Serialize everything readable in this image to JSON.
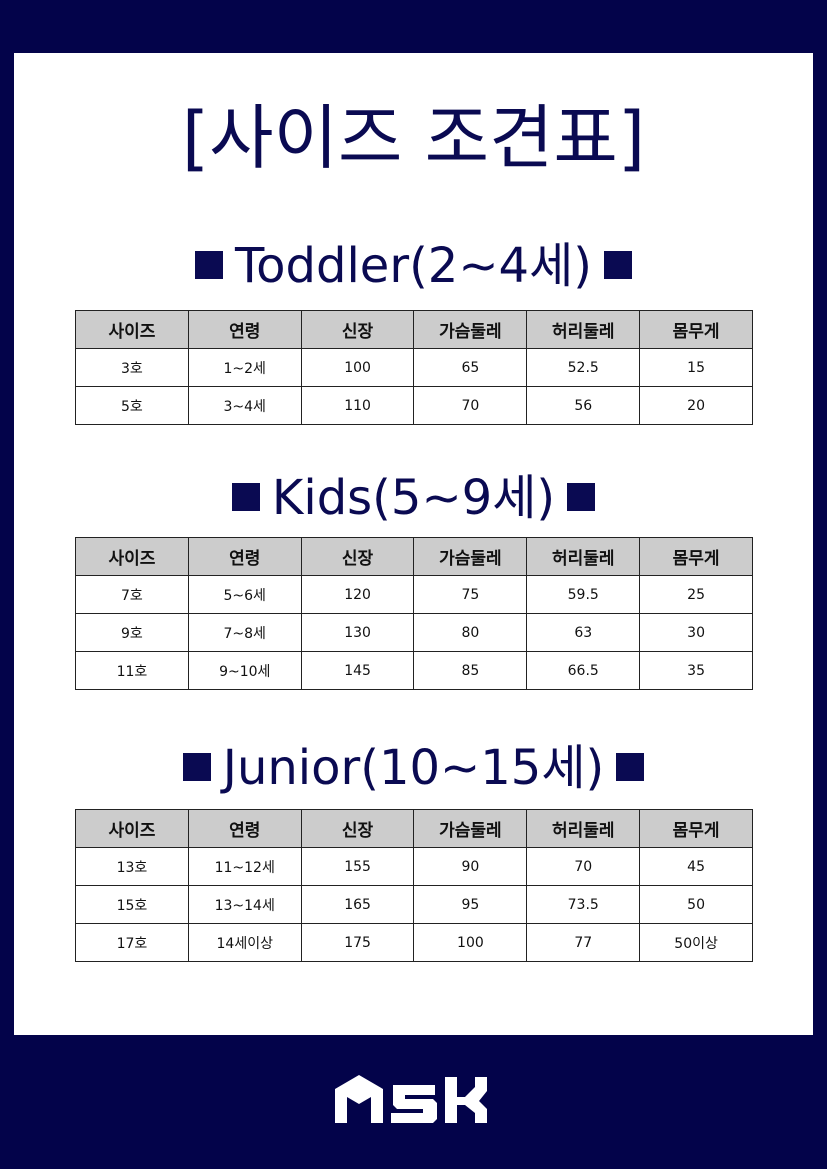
{
  "title": "[사이즈 조견표]",
  "headers": [
    "사이즈",
    "연령",
    "신장",
    "가슴둘레",
    "허리둘레",
    "몸무게"
  ],
  "sections": [
    {
      "heading": "Toddler(2~4세)",
      "rows": [
        [
          "3호",
          "1~2세",
          "100",
          "65",
          "52.5",
          "15"
        ],
        [
          "5호",
          "3~4세",
          "110",
          "70",
          "56",
          "20"
        ]
      ]
    },
    {
      "heading": "Kids(5~9세)",
      "rows": [
        [
          "7호",
          "5~6세",
          "120",
          "75",
          "59.5",
          "25"
        ],
        [
          "9호",
          "7~8세",
          "130",
          "80",
          "63",
          "30"
        ],
        [
          "11호",
          "9~10세",
          "145",
          "85",
          "66.5",
          "35"
        ]
      ]
    },
    {
      "heading": "Junior(10~15세)",
      "rows": [
        [
          "13호",
          "11~12세",
          "155",
          "90",
          "70",
          "45"
        ],
        [
          "15호",
          "13~14세",
          "165",
          "95",
          "73.5",
          "50"
        ],
        [
          "17호",
          "14세이상",
          "175",
          "100",
          "77",
          "50이상"
        ]
      ]
    }
  ],
  "logo": "ASK",
  "colors": {
    "navy": "#03034a",
    "header_bg": "#cccccc"
  }
}
